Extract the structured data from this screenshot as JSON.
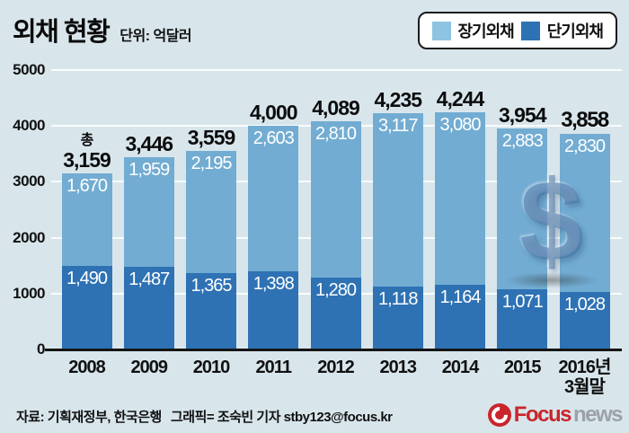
{
  "title": "외채 현황",
  "unit_label": "단위: 억달러",
  "legend": {
    "items": [
      {
        "label": "장기외채",
        "color": "#8ec4e2"
      },
      {
        "label": "단기외채",
        "color": "#2e72b4"
      }
    ]
  },
  "chart_data": {
    "type": "bar",
    "stacked": true,
    "title": "외채 현황",
    "unit": "억달러",
    "categories": [
      "2008",
      "2009",
      "2010",
      "2011",
      "2012",
      "2013",
      "2014",
      "2015",
      "2016년|3월말"
    ],
    "series": [
      {
        "name": "장기외채",
        "color": "#72acd2",
        "values": [
          1670,
          1959,
          2195,
          2603,
          2810,
          3117,
          3080,
          2883,
          2830
        ]
      },
      {
        "name": "단기외채",
        "color": "#2e72b4",
        "values": [
          1490,
          1487,
          1365,
          1398,
          1280,
          1118,
          1164,
          1071,
          1028
        ]
      }
    ],
    "totals": [
      3159,
      3446,
      3559,
      4000,
      4089,
      4235,
      4244,
      3954,
      3858
    ],
    "total_prefix": "총",
    "ylim": [
      0,
      5000
    ],
    "yticks": [
      0,
      1000,
      2000,
      3000,
      4000,
      5000
    ],
    "grid": true,
    "legend_position": "top-right"
  },
  "watermark": {
    "symbol": "$"
  },
  "footer": {
    "source": "자료: 기획재정부, 한국은행",
    "credit": "그래픽= 조숙빈 기자 stby123@focus.kr"
  },
  "logo": {
    "brand": "Focus",
    "suffix": "news"
  }
}
